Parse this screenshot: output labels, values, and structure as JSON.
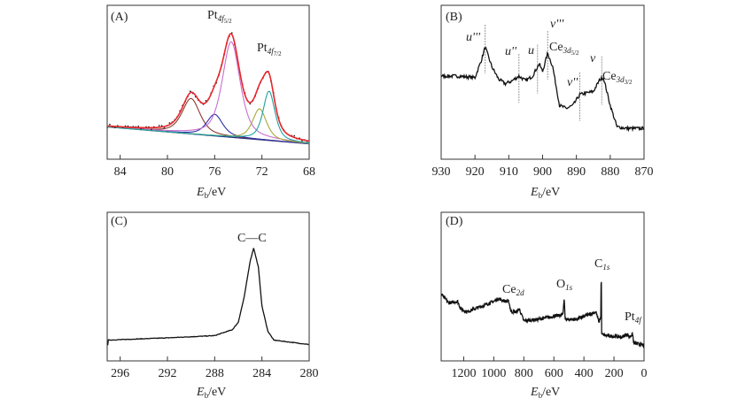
{
  "chart_data": [
    {
      "panel": "(A)",
      "type": "line",
      "xlabel": {
        "base": "E",
        "sub": "b",
        "unit": "/eV"
      },
      "xlim": [
        85.1,
        68
      ],
      "ylim": [
        0,
        100
      ],
      "xticks": [
        "84",
        "80",
        "76",
        "72",
        "68"
      ],
      "grid": false,
      "annotations": [
        {
          "base": "Pt",
          "sub": "4f",
          "subsub": "5/2"
        },
        {
          "base": "Pt",
          "sub": "4f",
          "subsub": "7/2"
        }
      ],
      "baseline": {
        "x": [
          85.1,
          68
        ],
        "y": [
          21,
          10
        ]
      },
      "components": [
        {
          "center": 78.0,
          "amplitude": 23,
          "hwhm": 0.9,
          "color": "#8b3a2e"
        },
        {
          "center": 76.0,
          "amplitude": 14,
          "hwhm": 0.8,
          "color": "#2b2fa8"
        },
        {
          "center": 74.6,
          "amplitude": 62,
          "hwhm": 0.9,
          "color": "#c86ed0"
        },
        {
          "center": 72.2,
          "amplitude": 20,
          "hwhm": 0.7,
          "color": "#a8a83a"
        },
        {
          "center": 71.4,
          "amplitude": 32,
          "hwhm": 0.6,
          "color": "#1fa3a0"
        }
      ],
      "fit_color": "#e8262b",
      "points_color": "#222222"
    },
    {
      "panel": "(B)",
      "type": "line",
      "xlabel": {
        "base": "E",
        "sub": "b",
        "unit": "/eV"
      },
      "xlim": [
        930,
        870
      ],
      "ylim": [
        0,
        100
      ],
      "xticks": [
        "930",
        "920",
        "910",
        "900",
        "890",
        "880",
        "870"
      ],
      "grid": false,
      "x": [
        930,
        925,
        920,
        918,
        917,
        915,
        913,
        911,
        909,
        907,
        905,
        903,
        901,
        900,
        898.5,
        897,
        895,
        893,
        891,
        889,
        887,
        885,
        883,
        882,
        880,
        878,
        875,
        870
      ],
      "y": [
        54,
        54,
        53,
        65,
        73,
        60,
        52,
        49,
        51,
        54,
        51,
        54,
        62,
        57,
        69,
        60,
        35,
        33,
        35,
        42,
        43,
        44,
        52,
        53,
        35,
        21,
        20,
        20
      ],
      "markers": [
        {
          "x": 917,
          "label": "u'''"
        },
        {
          "x": 907,
          "label": "u''"
        },
        {
          "x": 901.5,
          "label": "u"
        },
        {
          "x": 898.5,
          "label": "v'''"
        },
        {
          "x": 889,
          "label": "v''"
        },
        {
          "x": 882.5,
          "label": "v"
        }
      ],
      "annotations": [
        {
          "base": "Ce",
          "sub": "3d",
          "subsub": "5/2"
        },
        {
          "base": "Ce",
          "sub": "3d",
          "subsub": "3/2"
        }
      ]
    },
    {
      "panel": "(C)",
      "type": "line",
      "xlabel": {
        "base": "E",
        "sub": "b",
        "unit": "/eV"
      },
      "xlim": [
        297.1,
        280
      ],
      "ylim": [
        0,
        100
      ],
      "xticks": [
        "296",
        "292",
        "288",
        "284",
        "280"
      ],
      "grid": false,
      "x": [
        297,
        292,
        288,
        286.5,
        286,
        285.5,
        285,
        284.7,
        284.3,
        284,
        283.5,
        283,
        281,
        280
      ],
      "y": [
        14,
        15.5,
        17,
        21,
        26,
        43,
        67,
        76,
        63,
        37,
        20,
        14,
        12,
        11
      ],
      "annotations": [
        {
          "base": "C—C"
        }
      ]
    },
    {
      "panel": "(D)",
      "type": "line",
      "xlabel": {
        "base": "E",
        "sub": "b",
        "unit": "/eV"
      },
      "xlim": [
        1350,
        0
      ],
      "ylim": [
        0,
        100
      ],
      "xticks": [
        "1200",
        "1000",
        "800",
        "600",
        "400",
        "200",
        "0"
      ],
      "grid": false,
      "x": [
        1350,
        1300,
        1240,
        1220,
        1180,
        1100,
        1000,
        970,
        920,
        900,
        885,
        850,
        830,
        800,
        700,
        600,
        540,
        531,
        525,
        450,
        320,
        300,
        287,
        285,
        282,
        250,
        150,
        110,
        100,
        75,
        70,
        20,
        0
      ],
      "y": [
        45,
        39,
        40,
        35,
        33,
        36,
        40,
        42,
        40,
        40,
        33,
        33,
        35,
        27,
        28,
        30,
        31,
        43,
        28,
        28,
        33,
        26,
        30,
        72,
        18,
        17,
        16,
        18,
        16,
        18,
        12,
        11,
        10
      ],
      "annotations": [
        {
          "base": "Ce",
          "sub": "2d"
        },
        {
          "base": "O",
          "sub": "1s"
        },
        {
          "base": "C",
          "sub": "1s"
        },
        {
          "base": "Pt",
          "sub": "4f"
        }
      ]
    }
  ]
}
